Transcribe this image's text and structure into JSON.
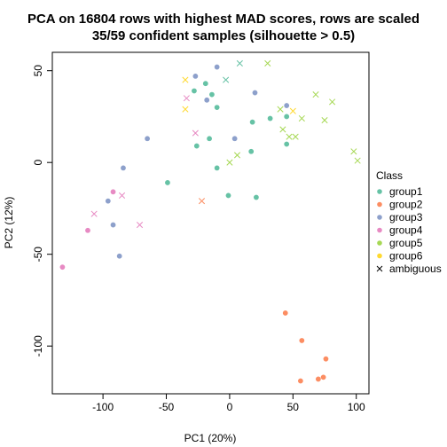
{
  "chart_data": {
    "type": "scatter",
    "title": "PCA on 16804 rows with highest MAD scores, rows are scaled",
    "subtitle": "35/59 confident samples (silhouette > 0.5)",
    "xlabel": "PC1 (20%)",
    "ylabel": "PC2 (12%)",
    "xlim": [
      -140,
      110
    ],
    "ylim": [
      -126,
      60
    ],
    "xticks": [
      -100,
      -50,
      0,
      50,
      100
    ],
    "yticks": [
      -100,
      -50,
      0,
      50
    ],
    "grid": false,
    "legend_position": "right",
    "legend_title": "Class",
    "series": [
      {
        "name": "group1",
        "color": "#66C2A5",
        "marker": "circle",
        "points": [
          [
            -28,
            39
          ],
          [
            -10,
            30
          ],
          [
            -14,
            37
          ],
          [
            -16,
            13
          ],
          [
            -26,
            9
          ],
          [
            -49,
            -11
          ],
          [
            -10,
            -3
          ],
          [
            -1,
            -18
          ],
          [
            21,
            -19
          ],
          [
            18,
            22
          ],
          [
            17,
            6
          ],
          [
            32,
            24
          ],
          [
            45,
            25
          ],
          [
            45,
            10
          ],
          [
            -19,
            43
          ]
        ]
      },
      {
        "name": "group2",
        "color": "#FC8D62",
        "marker": "circle",
        "points": [
          [
            44,
            -82
          ],
          [
            57,
            -97
          ],
          [
            76,
            -107
          ],
          [
            74,
            -117
          ],
          [
            70,
            -118
          ],
          [
            56,
            -119
          ]
        ]
      },
      {
        "name": "group3",
        "color": "#8DA0CB",
        "marker": "circle",
        "points": [
          [
            -10,
            52
          ],
          [
            -27,
            47
          ],
          [
            -18,
            34
          ],
          [
            20,
            38
          ],
          [
            45,
            31
          ],
          [
            4,
            13
          ],
          [
            -65,
            13
          ],
          [
            -84,
            -3
          ],
          [
            -96,
            -21
          ],
          [
            -92,
            -34
          ],
          [
            -87,
            -51
          ]
        ]
      },
      {
        "name": "group4",
        "color": "#E78AC3",
        "marker": "circle",
        "points": [
          [
            -92,
            -16
          ],
          [
            -112,
            -37
          ],
          [
            -132,
            -57
          ]
        ]
      },
      {
        "name": "group5",
        "color": "#A6D854",
        "marker": "circle",
        "points": []
      },
      {
        "name": "group6",
        "color": "#FFD92F",
        "marker": "circle",
        "points": []
      },
      {
        "name": "ambiguous",
        "color": "#000000",
        "marker": "x",
        "points": [
          [
            8,
            54,
            "#66C2A5"
          ],
          [
            -3,
            45,
            "#66C2A5"
          ],
          [
            30,
            54,
            "#A6D854"
          ],
          [
            -35,
            45,
            "#FFD92F"
          ],
          [
            -35,
            29,
            "#FFD92F"
          ],
          [
            -34,
            35,
            "#E78AC3"
          ],
          [
            -27,
            16,
            "#E78AC3"
          ],
          [
            -22,
            -21,
            "#FC8D62"
          ],
          [
            -85,
            -18,
            "#E78AC3"
          ],
          [
            -107,
            -28,
            "#E78AC3"
          ],
          [
            -71,
            -34,
            "#E78AC3"
          ],
          [
            40,
            29,
            "#A6D854"
          ],
          [
            50,
            28,
            "#FFD92F"
          ],
          [
            42,
            18,
            "#A6D854"
          ],
          [
            47,
            14,
            "#A6D854"
          ],
          [
            52,
            14,
            "#A6D854"
          ],
          [
            57,
            24,
            "#A6D854"
          ],
          [
            68,
            37,
            "#A6D854"
          ],
          [
            75,
            23,
            "#A6D854"
          ],
          [
            81,
            33,
            "#A6D854"
          ],
          [
            98,
            6,
            "#A6D854"
          ],
          [
            101,
            1,
            "#A6D854"
          ],
          [
            6,
            4,
            "#A6D854"
          ],
          [
            0,
            0,
            "#A6D854"
          ]
        ]
      }
    ]
  }
}
